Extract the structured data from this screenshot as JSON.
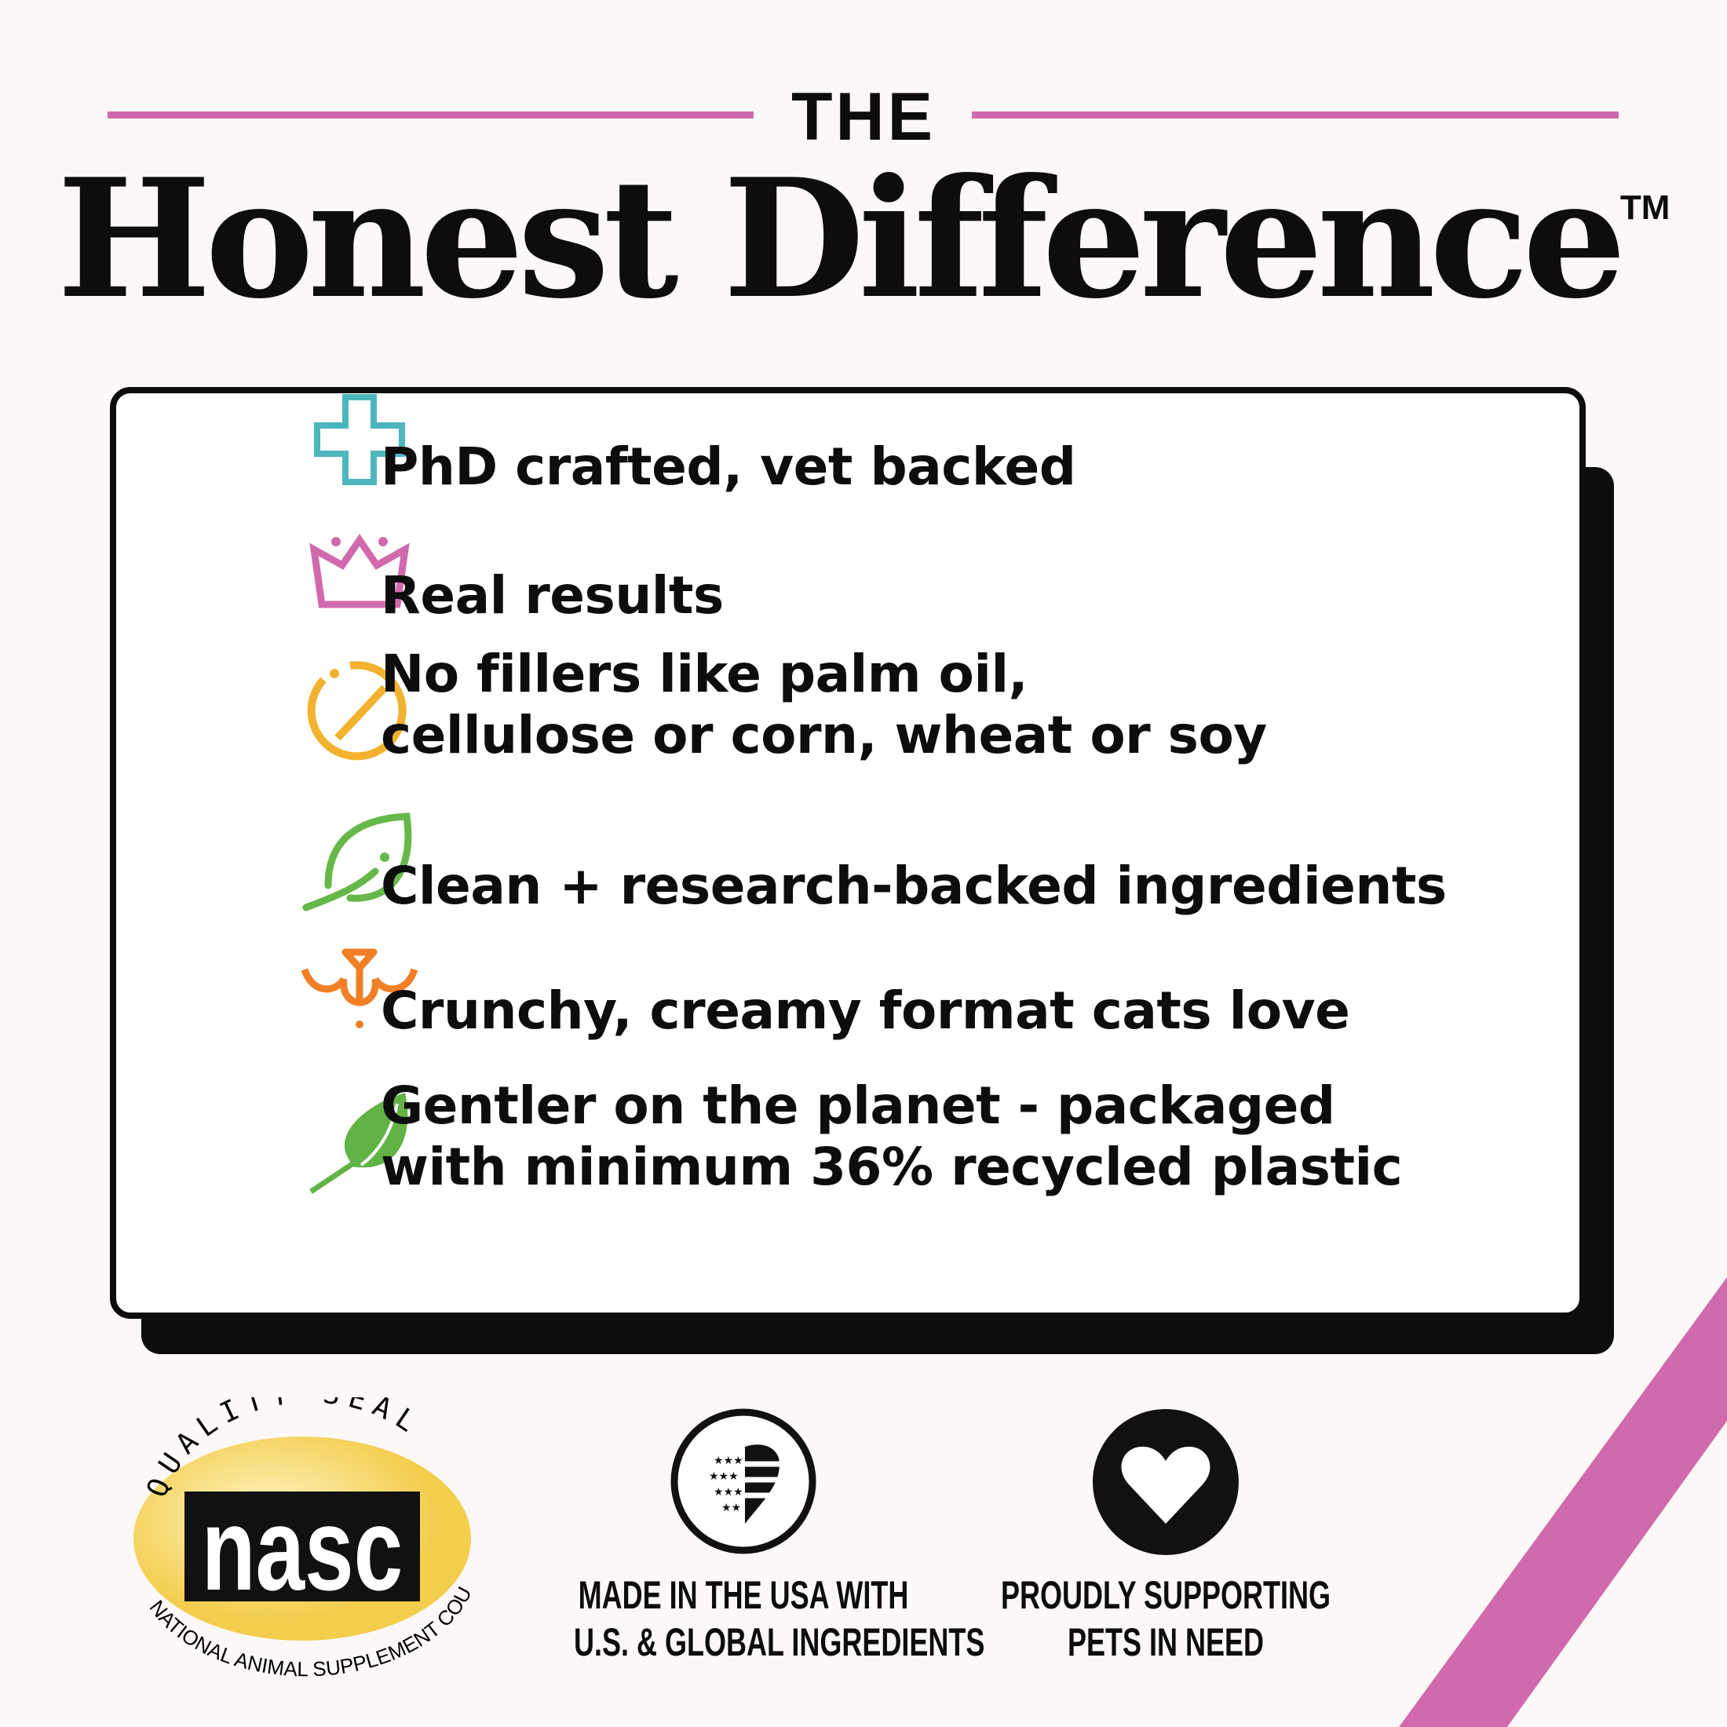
{
  "header": {
    "eyebrow": "THE",
    "title": "Honest Difference",
    "trademark": "TM"
  },
  "features": [
    {
      "icon": "medical-cross-icon",
      "color": "#4db6bd",
      "lines": [
        "PhD crafted, vet backed"
      ]
    },
    {
      "icon": "crown-icon",
      "color": "#d06aac",
      "lines": [
        "Real results"
      ]
    },
    {
      "icon": "no-symbol-icon",
      "color": "#f2b12e",
      "lines": [
        "No fillers like palm oil,",
        "cellulose or corn, wheat or soy"
      ]
    },
    {
      "icon": "leaf-outline-icon",
      "color": "#67b84a",
      "lines": [
        "Clean + research-backed ingredients"
      ]
    },
    {
      "icon": "cat-face-icon",
      "color": "#f07f26",
      "lines": [
        "Crunchy, creamy format cats love"
      ]
    },
    {
      "icon": "leaf-filled-icon",
      "color": "#62b346",
      "lines": [
        "Gentler on the planet - packaged",
        "with minimum 36% recycled plastic"
      ]
    }
  ],
  "badges": {
    "nasc": {
      "top": "QUALITY SEAL",
      "logo": "nasc",
      "bottom": "NATIONAL ANIMAL SUPPLEMENT COUNCIL"
    },
    "usa": {
      "icon": "flag-heart-icon",
      "lines": [
        "MADE IN THE USA WITH",
        "U.S. & GLOBAL INGREDIENTS"
      ]
    },
    "pets": {
      "icon": "heart-icon",
      "lines": [
        "PROUDLY SUPPORTING",
        "PETS IN NEED"
      ]
    }
  },
  "colors": {
    "accent": "#d06aac",
    "background": "#fcf8f7",
    "nasc_yellow": "#f5d35a"
  }
}
